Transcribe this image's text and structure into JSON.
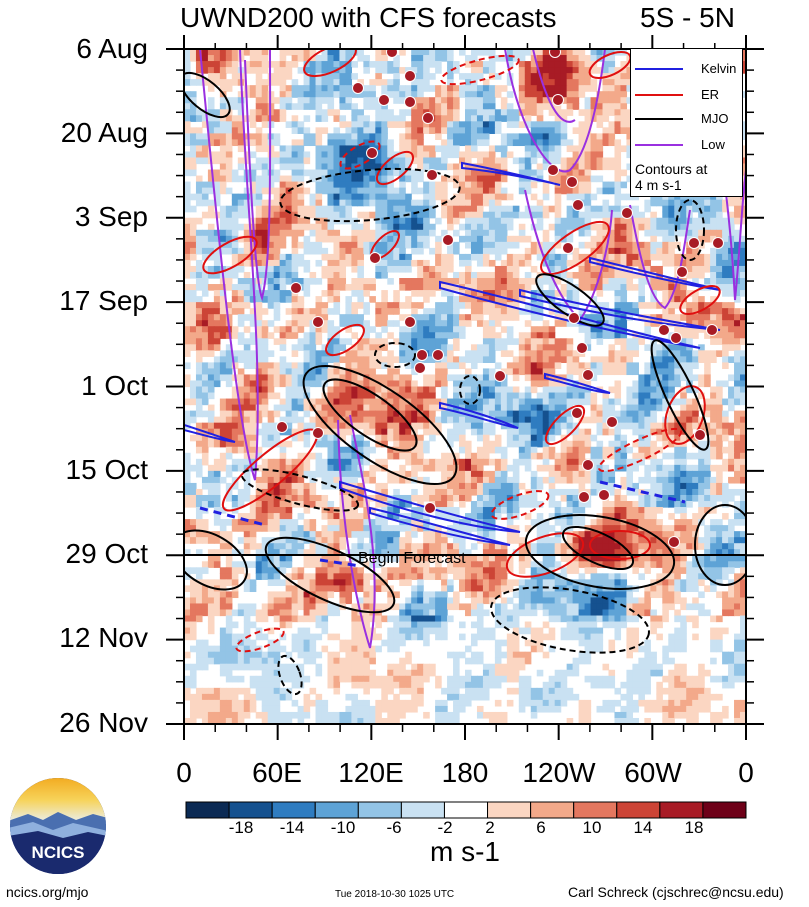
{
  "chart_data": {
    "type": "heatmap",
    "title": "UWND200 with CFS forecasts",
    "region": "5S - 5N",
    "x_tick_labels": [
      "0",
      "60E",
      "120E",
      "180",
      "120W",
      "60W",
      "0"
    ],
    "y_tick_labels": [
      "6 Aug",
      "20 Aug",
      "3 Sep",
      "17 Sep",
      "1 Oct",
      "15 Oct",
      "29 Oct",
      "12 Nov",
      "26 Nov"
    ],
    "x_range_deg": [
      0,
      360
    ],
    "y_range": [
      "6 Aug",
      "26 Nov"
    ],
    "colorbar": {
      "unit": "m s-1",
      "tick_labels": [
        "-18",
        "-14",
        "-10",
        "-6",
        "-2",
        "2",
        "6",
        "10",
        "14",
        "18"
      ],
      "colors": [
        "#0b2a54",
        "#15518f",
        "#2f7cc0",
        "#5ea3d6",
        "#93c4e6",
        "#c9e1f2",
        "#ffffff",
        "#fbd6c2",
        "#f3a98a",
        "#e4775f",
        "#cc4436",
        "#a81b25",
        "#6e0018"
      ]
    },
    "forecast_line": {
      "date": "29 Oct",
      "label": "Begin Forecast"
    },
    "legend": [
      {
        "name": "Kelvin",
        "color": "#2020e0"
      },
      {
        "name": "ER",
        "color": "#e01010"
      },
      {
        "name": "MJO",
        "color": "#000000"
      },
      {
        "name": "Low",
        "color": "#9a30e0"
      }
    ],
    "legend_note": [
      "Contours at",
      "4 m s-1"
    ]
  },
  "logo": {
    "text": "NCICS"
  },
  "footer": {
    "left": "ncics.org/mjo",
    "middle": "Tue 2018-10-30 1025 UTC",
    "right": "Carl Schreck (cjschrec@ncsu.edu)"
  }
}
